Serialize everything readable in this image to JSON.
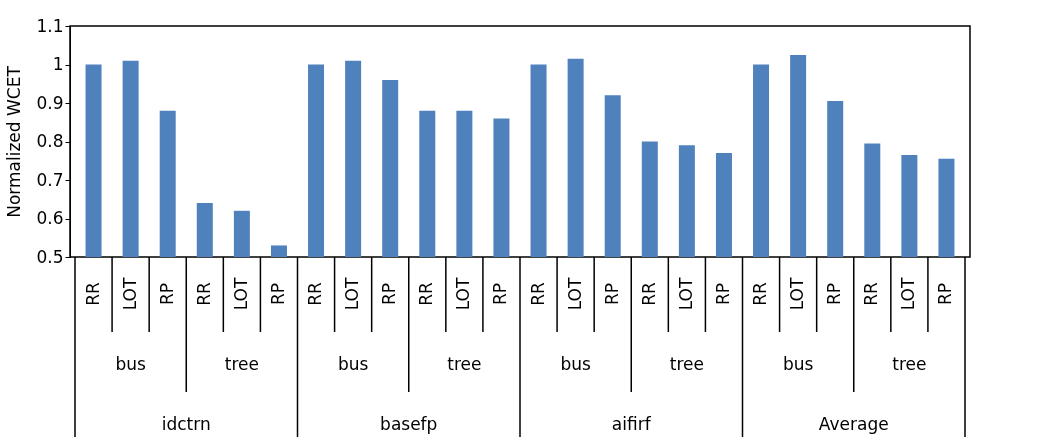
{
  "chart_data": {
    "type": "bar",
    "ylabel": "Normalized WCET",
    "categories": [
      "RR",
      "LOT",
      "RP",
      "RR",
      "LOT",
      "RP",
      "RR",
      "LOT",
      "RP",
      "RR",
      "LOT",
      "RP",
      "RR",
      "LOT",
      "RP",
      "RR",
      "LOT",
      "RP",
      "RR",
      "LOT",
      "RP",
      "RR",
      "LOT",
      "RP"
    ],
    "values": [
      1,
      1.01,
      0.88,
      0.64,
      0.62,
      0.53,
      1,
      1.01,
      0.96,
      0.88,
      0.88,
      0.86,
      1,
      1.015,
      0.92,
      0.8,
      0.79,
      0.77,
      1,
      1.025,
      0.905,
      0.795,
      0.765,
      0.755
    ],
    "color": "#4f81bd",
    "ylim": [
      0.5,
      1.1
    ],
    "yticks": [
      0.5,
      0.6,
      0.7,
      0.8,
      0.9,
      1,
      1.1
    ],
    "grid": false,
    "annotations": [
      "bus",
      "tree",
      "bus",
      "tree",
      "bus",
      "tree",
      "bus",
      "tree",
      "idctrn",
      "basefp",
      "aifirf",
      "Average"
    ]
  }
}
